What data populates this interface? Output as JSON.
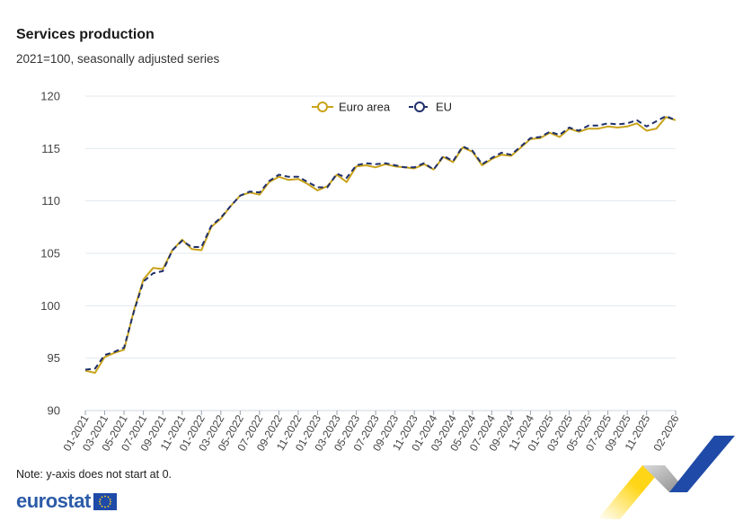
{
  "header": {
    "title": "Services production",
    "subtitle": "2021=100, seasonally adjusted series"
  },
  "footer": {
    "note": "Note: y-axis does not start at 0.",
    "logo_text": "eurostat"
  },
  "colors": {
    "euro_area": "#c9a31a",
    "eu": "#1f2f6b",
    "grid": "#e3e8ef",
    "axis_text": "#444444"
  },
  "chart_data": {
    "type": "line",
    "title": "Services production",
    "subtitle": "2021=100, seasonally adjusted series",
    "ylim": [
      90,
      120
    ],
    "yticks": [
      90,
      95,
      100,
      105,
      110,
      115,
      120
    ],
    "grid": true,
    "legend_position": "top-center",
    "x": [
      "01-2021",
      "02-2021",
      "03-2021",
      "04-2021",
      "05-2021",
      "06-2021",
      "07-2021",
      "08-2021",
      "09-2021",
      "10-2021",
      "11-2021",
      "12-2021",
      "01-2022",
      "02-2022",
      "03-2022",
      "04-2022",
      "05-2022",
      "06-2022",
      "07-2022",
      "08-2022",
      "09-2022",
      "10-2022",
      "11-2022",
      "12-2022",
      "01-2023",
      "02-2023",
      "03-2023",
      "04-2023",
      "05-2023",
      "06-2023",
      "07-2023",
      "08-2023",
      "09-2023",
      "10-2023",
      "11-2023",
      "12-2023",
      "01-2024",
      "02-2024",
      "03-2024",
      "04-2024",
      "05-2024",
      "06-2024",
      "07-2024",
      "08-2024",
      "09-2024",
      "10-2024",
      "11-2024",
      "12-2024",
      "01-2025",
      "02-2025",
      "03-2025",
      "04-2025",
      "05-2025",
      "06-2025",
      "07-2025",
      "08-2025",
      "09-2025",
      "10-2025",
      "11-2025",
      "12-2025",
      "01-2026",
      "02-2026"
    ],
    "xtick_labels": [
      "01-2021",
      "03-2021",
      "05-2021",
      "07-2021",
      "09-2021",
      "11-2021",
      "01-2022",
      "03-2022",
      "05-2022",
      "07-2022",
      "09-2022",
      "11-2022",
      "01-2023",
      "03-2023",
      "05-2023",
      "07-2023",
      "09-2023",
      "11-2023",
      "01-2024",
      "03-2024",
      "05-2024",
      "07-2024",
      "09-2024",
      "11-2024",
      "01-2025",
      "03-2025",
      "05-2025",
      "07-2025",
      "09-2025",
      "11-2025",
      "02-2026"
    ],
    "series": [
      {
        "name": "Euro area",
        "color": "#c9a31a",
        "values": [
          93.8,
          93.6,
          95.1,
          95.5,
          95.8,
          99.5,
          102.5,
          103.6,
          103.5,
          105.3,
          106.3,
          105.4,
          105.3,
          107.5,
          108.3,
          109.5,
          110.5,
          110.8,
          110.6,
          111.8,
          112.3,
          112.0,
          112.1,
          111.6,
          111.0,
          111.4,
          112.5,
          111.8,
          113.3,
          113.4,
          113.2,
          113.5,
          113.3,
          113.2,
          113.1,
          113.5,
          113.0,
          114.2,
          113.7,
          115.1,
          114.7,
          113.4,
          114.0,
          114.4,
          114.3,
          115.1,
          115.9,
          116.0,
          116.5,
          116.1,
          116.9,
          116.6,
          116.9,
          116.9,
          117.1,
          117.0,
          117.1,
          117.4,
          116.7,
          116.9,
          118.0,
          117.7
        ]
      },
      {
        "name": "EU",
        "color": "#1f2f6b",
        "values": [
          93.9,
          94.0,
          95.3,
          95.6,
          96.0,
          99.4,
          102.3,
          103.1,
          103.3,
          105.3,
          106.2,
          105.6,
          105.6,
          107.6,
          108.4,
          109.5,
          110.5,
          110.9,
          110.8,
          111.9,
          112.5,
          112.3,
          112.3,
          111.8,
          111.3,
          111.3,
          112.6,
          112.2,
          113.4,
          113.6,
          113.5,
          113.6,
          113.4,
          113.2,
          113.2,
          113.6,
          113.0,
          114.3,
          113.8,
          115.2,
          114.8,
          113.5,
          114.1,
          114.6,
          114.4,
          115.2,
          116.0,
          116.1,
          116.6,
          116.3,
          117.0,
          116.7,
          117.2,
          117.2,
          117.4,
          117.3,
          117.4,
          117.7,
          117.1,
          117.6,
          118.1,
          117.7
        ]
      }
    ]
  }
}
